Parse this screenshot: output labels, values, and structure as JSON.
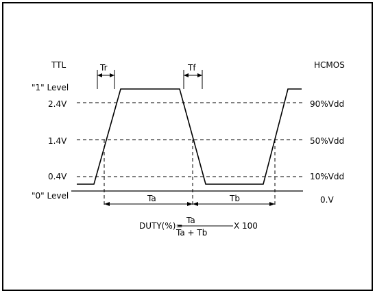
{
  "diagram": {
    "left_title": "TTL",
    "right_title": "HCMOS",
    "tr_label": "Tr",
    "tf_label": "Tf",
    "level_high": "\"1\"  Level",
    "level_low": "\"0\"  Level",
    "ttl_levels": [
      "2.4V",
      "1.4V",
      "0.4V"
    ],
    "hcmos_levels": [
      "90%Vdd",
      "50%Vdd",
      "10%Vdd",
      "0.V"
    ],
    "ta_label": "Ta",
    "tb_label": "Tb",
    "formula": {
      "lhs": "DUTY(%)=",
      "numerator": "Ta",
      "denominator": "Ta  +  Tb",
      "multiplier": "X  100"
    }
  }
}
